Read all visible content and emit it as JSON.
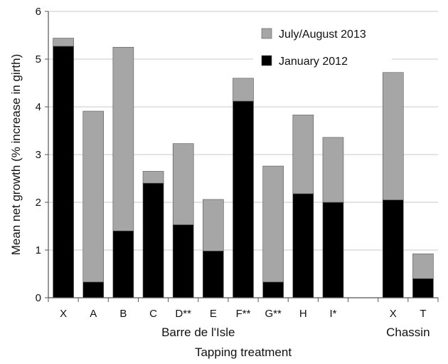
{
  "chart_data": {
    "type": "bar",
    "stacked": true,
    "categories": [
      "X",
      "A",
      "B",
      "C",
      "D**",
      "E",
      "F**",
      "G**",
      "H",
      "I*",
      "X",
      "T"
    ],
    "groups": [
      {
        "label": "Barre de l'Isle",
        "categories": [
          "X",
          "A",
          "B",
          "C",
          "D**",
          "E",
          "F**",
          "G**",
          "H",
          "I*"
        ]
      },
      {
        "label": "Chassin",
        "categories": [
          "X",
          "T"
        ]
      }
    ],
    "series": [
      {
        "name": "January 2012",
        "color": "#000000",
        "values": [
          5.27,
          0.33,
          1.4,
          2.4,
          1.53,
          0.98,
          4.12,
          0.33,
          2.18,
          2.0,
          2.05,
          0.4
        ]
      },
      {
        "name": "July/August 2013",
        "color": "#a6a6a6",
        "values": [
          0.17,
          3.58,
          3.85,
          0.25,
          1.7,
          1.08,
          0.48,
          2.43,
          1.65,
          1.36,
          2.67,
          0.52
        ]
      }
    ],
    "xlabel": "Tapping treatment",
    "ylabel": "Mean net growth (% increase in girth)",
    "ylim": [
      0,
      6
    ],
    "yticks": [
      0,
      1,
      2,
      3,
      4,
      5,
      6
    ],
    "grid": "horizontal",
    "legend_position": "top-right"
  }
}
